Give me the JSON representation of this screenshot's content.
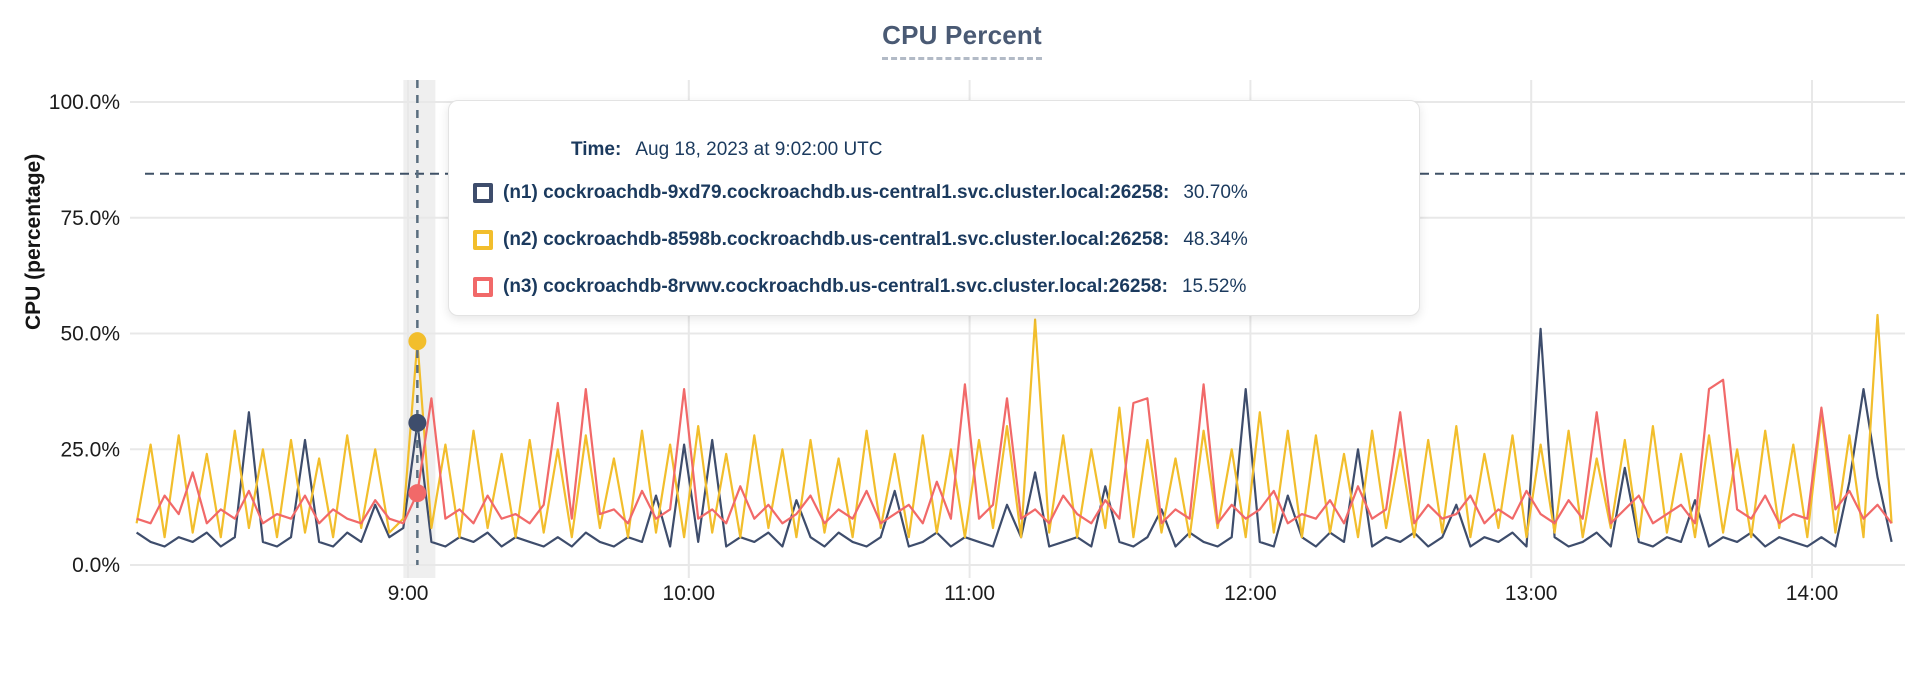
{
  "tooltip": {
    "time_label": "Time:",
    "time_value": "Aug 18, 2023 at 9:02:00 UTC",
    "rows": [
      {
        "label": "(n1) cockroachdb-9xd79.cockroachdb.us-central1.svc.cluster.local:26258:",
        "value": "30.70%",
        "color": "#3E4D6C"
      },
      {
        "label": "(n2) cockroachdb-8598b.cockroachdb.us-central1.svc.cluster.local:26258:",
        "value": "48.34%",
        "color": "#F2BE2C"
      },
      {
        "label": "(n3) cockroachdb-8rvwv.cockroachdb.us-central1.svc.cluster.local:26258:",
        "value": "15.52%",
        "color": "#F16969"
      }
    ]
  },
  "chart_data": {
    "type": "line",
    "title": "CPU Percent",
    "ylabel": "CPU (percentage)",
    "x_axis": {
      "start_min": 482,
      "step_min": 3,
      "tick_minutes": [
        540,
        600,
        660,
        720,
        780,
        840
      ],
      "tick_labels": [
        "9:00",
        "10:00",
        "11:00",
        "12:00",
        "13:00",
        "14:00"
      ]
    },
    "y_axis": {
      "tick_values": [
        0,
        25,
        50,
        75,
        100
      ],
      "tick_labels": [
        "0.0%",
        "25.0%",
        "50.0%",
        "75.0%",
        "100.0%"
      ],
      "ylim": [
        0,
        100
      ]
    },
    "grid": true,
    "threshold_line_pct": 84.5,
    "cursor": {
      "minute": 542,
      "points": [
        {
          "series": "n2",
          "value": 48.34
        },
        {
          "series": "n1",
          "value": 30.7
        },
        {
          "series": "n3",
          "value": 15.52
        }
      ]
    },
    "series": [
      {
        "id": "n1",
        "color": "#3E4D6C",
        "values": [
          7,
          5,
          4,
          6,
          5,
          7,
          4,
          6,
          33,
          5,
          4,
          6,
          27,
          5,
          4,
          7,
          5,
          13,
          6,
          8,
          30.7,
          5,
          4,
          6,
          5,
          7,
          4,
          6,
          5,
          4,
          6,
          4,
          7,
          5,
          4,
          6,
          5,
          15,
          4,
          26,
          5,
          27,
          4,
          6,
          5,
          7,
          4,
          14,
          6,
          4,
          7,
          5,
          4,
          6,
          16,
          4,
          5,
          7,
          4,
          6,
          5,
          4,
          13,
          6,
          20,
          4,
          5,
          6,
          4,
          17,
          5,
          4,
          6,
          12,
          4,
          7,
          5,
          4,
          6,
          38,
          5,
          4,
          15,
          6,
          4,
          7,
          5,
          25,
          4,
          6,
          5,
          7,
          4,
          6,
          13,
          4,
          6,
          5,
          7,
          4,
          51,
          6,
          4,
          5,
          7,
          4,
          21,
          5,
          4,
          6,
          5,
          14,
          4,
          6,
          5,
          7,
          4,
          6,
          5,
          4,
          6,
          4,
          18,
          38,
          19,
          5
        ]
      },
      {
        "id": "n2",
        "color": "#F2BE2C",
        "values": [
          9,
          26,
          6,
          28,
          7,
          24,
          6,
          29,
          8,
          25,
          6,
          27,
          7,
          23,
          6,
          28,
          8,
          25,
          7,
          10,
          48.3,
          8,
          26,
          6,
          29,
          8,
          24,
          6,
          27,
          7,
          25,
          6,
          28,
          8,
          23,
          6,
          29,
          7,
          26,
          6,
          30,
          7,
          24,
          6,
          28,
          8,
          25,
          6,
          27,
          7,
          23,
          6,
          29,
          8,
          24,
          6,
          28,
          7,
          25,
          6,
          27,
          8,
          30,
          6,
          53,
          7,
          28,
          6,
          25,
          8,
          34,
          6,
          27,
          7,
          23,
          6,
          29,
          8,
          25,
          6,
          33,
          7,
          29,
          6,
          28,
          7,
          24,
          6,
          29,
          8,
          25,
          6,
          27,
          7,
          30,
          6,
          24,
          8,
          28,
          6,
          26,
          7,
          29,
          6,
          23,
          8,
          27,
          6,
          30,
          7,
          24,
          6,
          28,
          7,
          25,
          6,
          29,
          8,
          26,
          6,
          33,
          7,
          28,
          6,
          54,
          9
        ]
      },
      {
        "id": "n3",
        "color": "#F16969",
        "values": [
          10,
          9,
          15,
          11,
          20,
          9,
          12,
          10,
          16,
          9,
          11,
          10,
          15,
          9,
          12,
          10,
          9,
          14,
          10,
          9,
          15.5,
          36,
          10,
          12,
          9,
          15,
          10,
          11,
          9,
          13,
          35,
          10,
          38,
          11,
          12,
          9,
          16,
          10,
          12,
          38,
          10,
          12,
          9,
          17,
          10,
          13,
          9,
          11,
          15,
          9,
          12,
          10,
          16,
          9,
          11,
          13,
          9,
          18,
          10,
          39,
          10,
          13,
          36,
          10,
          12,
          9,
          15,
          11,
          9,
          14,
          10,
          35,
          36,
          9,
          12,
          10,
          39,
          9,
          13,
          10,
          12,
          16,
          9,
          11,
          10,
          14,
          9,
          17,
          10,
          12,
          33,
          9,
          13,
          10,
          11,
          15,
          9,
          12,
          10,
          16,
          11,
          9,
          14,
          10,
          33,
          9,
          12,
          15,
          9,
          11,
          13,
          9,
          38,
          40,
          12,
          10,
          15,
          9,
          11,
          10,
          34,
          12,
          16,
          10,
          13,
          9
        ]
      }
    ]
  }
}
